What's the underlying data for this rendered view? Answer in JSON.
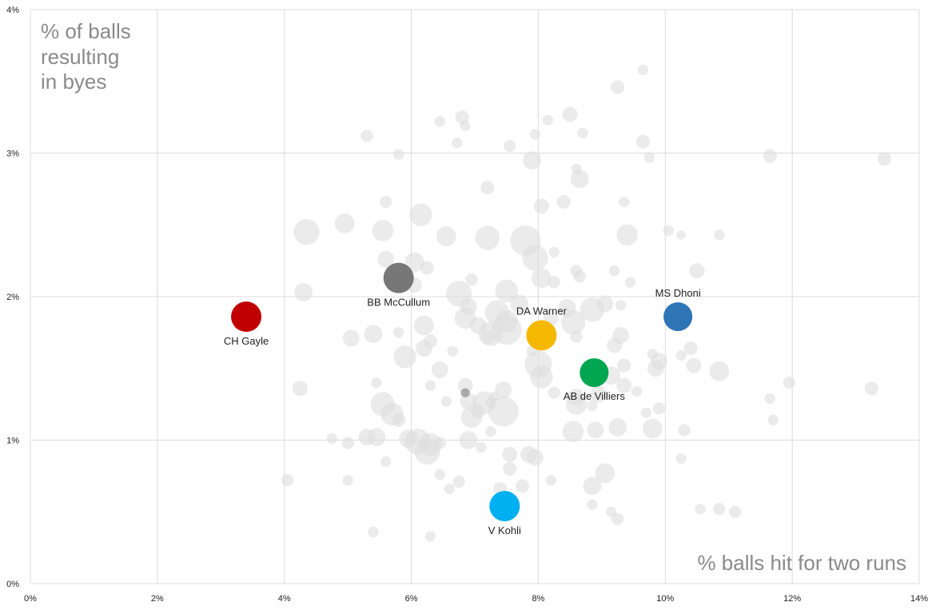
{
  "chart_data": {
    "type": "scatter",
    "title": "",
    "xlabel": "% balls hit for two runs",
    "ylabel_lines": [
      "% of balls",
      "resulting",
      "in byes"
    ],
    "xlim": [
      0,
      14
    ],
    "ylim": [
      0,
      4
    ],
    "x_ticks": [
      0,
      2,
      4,
      6,
      8,
      10,
      12,
      14
    ],
    "y_ticks": [
      0,
      1,
      2,
      3,
      4
    ],
    "x_tick_labels": [
      "0%",
      "2%",
      "4%",
      "6%",
      "8%",
      "10%",
      "12%",
      "14%"
    ],
    "y_tick_labels": [
      "0%",
      "1%",
      "2%",
      "3%",
      "4%"
    ],
    "grid": true,
    "background_color": "#dddddd",
    "highlight_text_color": "#222222",
    "highlighted": [
      {
        "label": "CH Gayle",
        "x": 3.4,
        "y": 1.86,
        "size": 1.0,
        "color": "#c00000",
        "label_pos": "below"
      },
      {
        "label": "BB McCullum",
        "x": 5.8,
        "y": 2.13,
        "size": 1.0,
        "color": "#777777",
        "label_pos": "below"
      },
      {
        "label": "DA Warner",
        "x": 8.05,
        "y": 1.73,
        "size": 1.0,
        "color": "#f5b800",
        "label_pos": "above"
      },
      {
        "label": "MS Dhoni",
        "x": 10.2,
        "y": 1.86,
        "size": 0.95,
        "color": "#2e75b6",
        "label_pos": "above"
      },
      {
        "label": "AB de Villiers",
        "x": 8.88,
        "y": 1.47,
        "size": 0.95,
        "color": "#00a650",
        "label_pos": "below"
      },
      {
        "label": "V Kohli",
        "x": 7.47,
        "y": 0.54,
        "size": 1.0,
        "color": "#00b0f0",
        "label_pos": "below"
      }
    ],
    "background_points": [
      [
        9.65,
        3.58,
        0.35
      ],
      [
        9.25,
        3.46,
        0.45
      ],
      [
        8.5,
        3.27,
        0.5
      ],
      [
        6.8,
        3.25,
        0.45
      ],
      [
        6.45,
        3.22,
        0.35
      ],
      [
        8.15,
        3.23,
        0.35
      ],
      [
        6.85,
        3.19,
        0.35
      ],
      [
        5.3,
        3.12,
        0.4
      ],
      [
        7.95,
        3.13,
        0.35
      ],
      [
        8.7,
        3.14,
        0.35
      ],
      [
        6.72,
        3.07,
        0.35
      ],
      [
        7.55,
        3.05,
        0.4
      ],
      [
        9.65,
        3.08,
        0.45
      ],
      [
        5.8,
        2.99,
        0.35
      ],
      [
        7.9,
        2.95,
        0.6
      ],
      [
        9.75,
        2.97,
        0.35
      ],
      [
        11.65,
        2.98,
        0.45
      ],
      [
        13.45,
        2.96,
        0.45
      ],
      [
        8.6,
        2.89,
        0.35
      ],
      [
        8.65,
        2.82,
        0.6
      ],
      [
        7.2,
        2.76,
        0.45
      ],
      [
        5.6,
        2.66,
        0.4
      ],
      [
        8.05,
        2.63,
        0.5
      ],
      [
        8.4,
        2.66,
        0.45
      ],
      [
        9.35,
        2.66,
        0.35
      ],
      [
        6.15,
        2.57,
        0.75
      ],
      [
        4.95,
        2.51,
        0.65
      ],
      [
        4.35,
        2.45,
        0.85
      ],
      [
        5.55,
        2.46,
        0.7
      ],
      [
        6.55,
        2.42,
        0.65
      ],
      [
        7.2,
        2.41,
        0.8
      ],
      [
        7.8,
        2.39,
        1.0
      ],
      [
        9.4,
        2.43,
        0.7
      ],
      [
        10.05,
        2.46,
        0.35
      ],
      [
        10.25,
        2.43,
        0.3
      ],
      [
        10.85,
        2.43,
        0.35
      ],
      [
        6.05,
        2.24,
        0.65
      ],
      [
        6.25,
        2.2,
        0.45
      ],
      [
        8.25,
        2.31,
        0.35
      ],
      [
        7.95,
        2.27,
        0.85
      ],
      [
        8.6,
        2.18,
        0.4
      ],
      [
        10.5,
        2.18,
        0.5
      ],
      [
        5.6,
        2.26,
        0.55
      ],
      [
        6.95,
        2.12,
        0.4
      ],
      [
        8.05,
        2.13,
        0.65
      ],
      [
        8.65,
        2.14,
        0.4
      ],
      [
        9.2,
        2.18,
        0.35
      ],
      [
        9.45,
        2.1,
        0.35
      ],
      [
        4.3,
        2.03,
        0.6
      ],
      [
        6.05,
        2.08,
        0.5
      ],
      [
        6.75,
        2.02,
        0.85
      ],
      [
        7.5,
        2.04,
        0.75
      ],
      [
        8.25,
        2.1,
        0.4
      ],
      [
        9.05,
        1.95,
        0.55
      ],
      [
        6.9,
        1.93,
        0.55
      ],
      [
        7.35,
        1.89,
        0.8
      ],
      [
        7.7,
        1.95,
        0.6
      ],
      [
        8.45,
        1.92,
        0.6
      ],
      [
        8.85,
        1.91,
        0.8
      ],
      [
        9.3,
        1.94,
        0.35
      ],
      [
        6.85,
        1.85,
        0.7
      ],
      [
        7.05,
        1.8,
        0.55
      ],
      [
        7.5,
        1.83,
        0.75
      ],
      [
        7.25,
        1.74,
        0.8
      ],
      [
        7.5,
        1.77,
        1.0
      ],
      [
        8.2,
        1.85,
        0.5
      ],
      [
        8.55,
        1.82,
        0.8
      ],
      [
        6.2,
        1.8,
        0.65
      ],
      [
        5.8,
        1.75,
        0.35
      ],
      [
        5.4,
        1.74,
        0.6
      ],
      [
        5.05,
        1.71,
        0.55
      ],
      [
        7.2,
        1.72,
        0.45
      ],
      [
        8.6,
        1.72,
        0.4
      ],
      [
        9.3,
        1.73,
        0.55
      ],
      [
        6.3,
        1.69,
        0.45
      ],
      [
        6.2,
        1.64,
        0.55
      ],
      [
        5.9,
        1.58,
        0.75
      ],
      [
        6.65,
        1.62,
        0.35
      ],
      [
        7.9,
        1.62,
        0.35
      ],
      [
        8.0,
        1.53,
        0.9
      ],
      [
        9.2,
        1.66,
        0.5
      ],
      [
        9.35,
        1.52,
        0.45
      ],
      [
        9.8,
        1.6,
        0.35
      ],
      [
        9.9,
        1.55,
        0.55
      ],
      [
        10.4,
        1.64,
        0.45
      ],
      [
        10.25,
        1.59,
        0.35
      ],
      [
        10.45,
        1.52,
        0.5
      ],
      [
        10.85,
        1.48,
        0.65
      ],
      [
        9.85,
        1.5,
        0.55
      ],
      [
        6.45,
        1.49,
        0.55
      ],
      [
        8.05,
        1.44,
        0.75
      ],
      [
        8.85,
        1.45,
        0.4
      ],
      [
        9.15,
        1.45,
        0.6
      ],
      [
        5.45,
        1.4,
        0.35
      ],
      [
        6.85,
        1.38,
        0.5
      ],
      [
        7.45,
        1.35,
        0.55
      ],
      [
        7.3,
        1.3,
        0.35
      ],
      [
        8.25,
        1.33,
        0.4
      ],
      [
        8.6,
        1.3,
        0.55
      ],
      [
        8.95,
        1.32,
        0.55
      ],
      [
        9.35,
        1.38,
        0.5
      ],
      [
        9.55,
        1.34,
        0.35
      ],
      [
        4.25,
        1.36,
        0.5
      ],
      [
        5.55,
        1.25,
        0.8
      ],
      [
        6.3,
        1.38,
        0.35
      ],
      [
        6.55,
        1.27,
        0.35
      ],
      [
        6.9,
        1.27,
        0.55
      ],
      [
        7.15,
        1.26,
        0.75
      ],
      [
        7.25,
        1.26,
        0.35
      ],
      [
        7.45,
        1.2,
        1.0
      ],
      [
        8.6,
        1.25,
        0.7
      ],
      [
        8.85,
        1.24,
        0.35
      ],
      [
        9.7,
        1.19,
        0.35
      ],
      [
        9.9,
        1.22,
        0.4
      ],
      [
        11.65,
        1.29,
        0.35
      ],
      [
        11.95,
        1.4,
        0.4
      ],
      [
        13.25,
        1.36,
        0.45
      ],
      [
        5.7,
        1.18,
        0.75
      ],
      [
        5.8,
        1.14,
        0.45
      ],
      [
        6.95,
        1.16,
        0.7
      ],
      [
        7.05,
        1.2,
        0.45
      ],
      [
        11.7,
        1.14,
        0.35
      ],
      [
        8.55,
        1.06,
        0.7
      ],
      [
        8.9,
        1.07,
        0.55
      ],
      [
        9.25,
        1.09,
        0.6
      ],
      [
        9.8,
        1.08,
        0.65
      ],
      [
        10.3,
        1.07,
        0.4
      ],
      [
        5.3,
        1.02,
        0.55
      ],
      [
        5.45,
        1.02,
        0.6
      ],
      [
        5.95,
        1.01,
        0.6
      ],
      [
        6.3,
        0.97,
        0.75
      ],
      [
        6.45,
        0.98,
        0.4
      ],
      [
        6.9,
        1.0,
        0.6
      ],
      [
        7.1,
        0.95,
        0.35
      ],
      [
        7.25,
        1.06,
        0.35
      ],
      [
        4.75,
        1.01,
        0.35
      ],
      [
        5.0,
        0.98,
        0.4
      ],
      [
        6.1,
        0.99,
        0.85
      ],
      [
        6.25,
        0.92,
        0.85
      ],
      [
        7.55,
        0.9,
        0.5
      ],
      [
        7.85,
        0.9,
        0.55
      ],
      [
        7.95,
        0.88,
        0.55
      ],
      [
        5.6,
        0.85,
        0.35
      ],
      [
        7.55,
        0.8,
        0.45
      ],
      [
        9.05,
        0.77,
        0.65
      ],
      [
        10.25,
        0.87,
        0.35
      ],
      [
        4.05,
        0.72,
        0.4
      ],
      [
        5.0,
        0.72,
        0.35
      ],
      [
        6.45,
        0.76,
        0.35
      ],
      [
        6.75,
        0.71,
        0.4
      ],
      [
        7.75,
        0.68,
        0.45
      ],
      [
        8.2,
        0.72,
        0.35
      ],
      [
        8.85,
        0.68,
        0.6
      ],
      [
        6.6,
        0.66,
        0.35
      ],
      [
        7.4,
        0.66,
        0.45
      ],
      [
        8.85,
        0.55,
        0.35
      ],
      [
        9.15,
        0.5,
        0.35
      ],
      [
        9.25,
        0.45,
        0.4
      ],
      [
        10.55,
        0.52,
        0.35
      ],
      [
        10.85,
        0.52,
        0.4
      ],
      [
        11.1,
        0.5,
        0.4
      ],
      [
        5.4,
        0.36,
        0.35
      ],
      [
        6.3,
        0.33,
        0.35
      ]
    ],
    "dark_points": [
      [
        6.85,
        1.33,
        0.3
      ]
    ]
  }
}
